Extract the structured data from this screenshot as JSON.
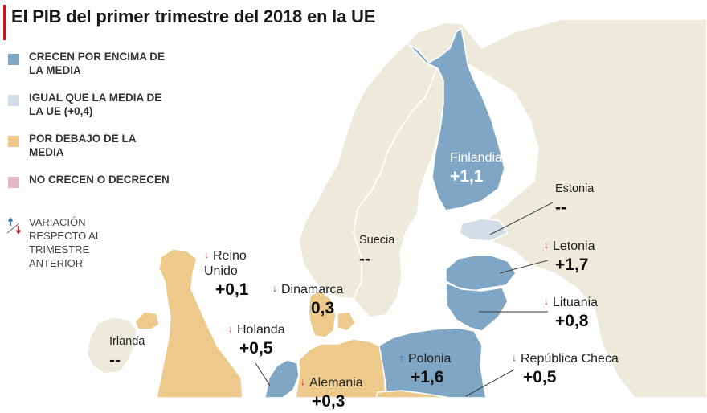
{
  "title": "El PIB del primer trimestre del 2018 en la UE",
  "colors": {
    "above_avg": "#7fa6c4",
    "equal_avg": "#d3dde8",
    "below_avg": "#edc98c",
    "no_growth": "#e3b9c8",
    "non_eu": "#eeeadb",
    "sea": "#ffffff",
    "arrow_down": "#b3121b",
    "arrow_up": "#1f6fb5"
  },
  "legend": {
    "above": "CRECEN POR ENCIMA DE LA MEDIA",
    "equal": "IGUAL QUE LA MEDIA DE LA UE (+0,4)",
    "below": "POR DEBAJO DE LA MEDIA",
    "none": "NO CRECEN O DECRECEN",
    "variation": "VARIACIÓN RESPECTO AL TRIMESTRE ANTERIOR"
  },
  "countries": {
    "finlandia": {
      "name": "Finlandia",
      "value": "+1,1"
    },
    "estonia": {
      "name": "Estonia",
      "value": "--"
    },
    "suecia": {
      "name": "Suecia",
      "value": "--"
    },
    "letonia": {
      "name": "Letonia",
      "value": "+1,7",
      "arrow": "down"
    },
    "reino_unido": {
      "name": "Reino Unido",
      "value": "+0,1",
      "arrow": "down"
    },
    "dinamarca": {
      "name": "Dinamarca",
      "value": "0,3",
      "arrow": "down"
    },
    "lituania": {
      "name": "Lituania",
      "value": "+0,8",
      "arrow": "down"
    },
    "irlanda": {
      "name": "Irlanda",
      "value": "--"
    },
    "holanda": {
      "name": "Holanda",
      "value": "+0,5",
      "arrow": "down"
    },
    "polonia": {
      "name": "Polonia",
      "value": "+1,6",
      "arrow": "up"
    },
    "republica_checa": {
      "name": "República Checa",
      "value": "+0,5",
      "arrow": "down"
    },
    "alemania": {
      "name": "Alemania",
      "value": "+0,3",
      "arrow": "down"
    }
  }
}
